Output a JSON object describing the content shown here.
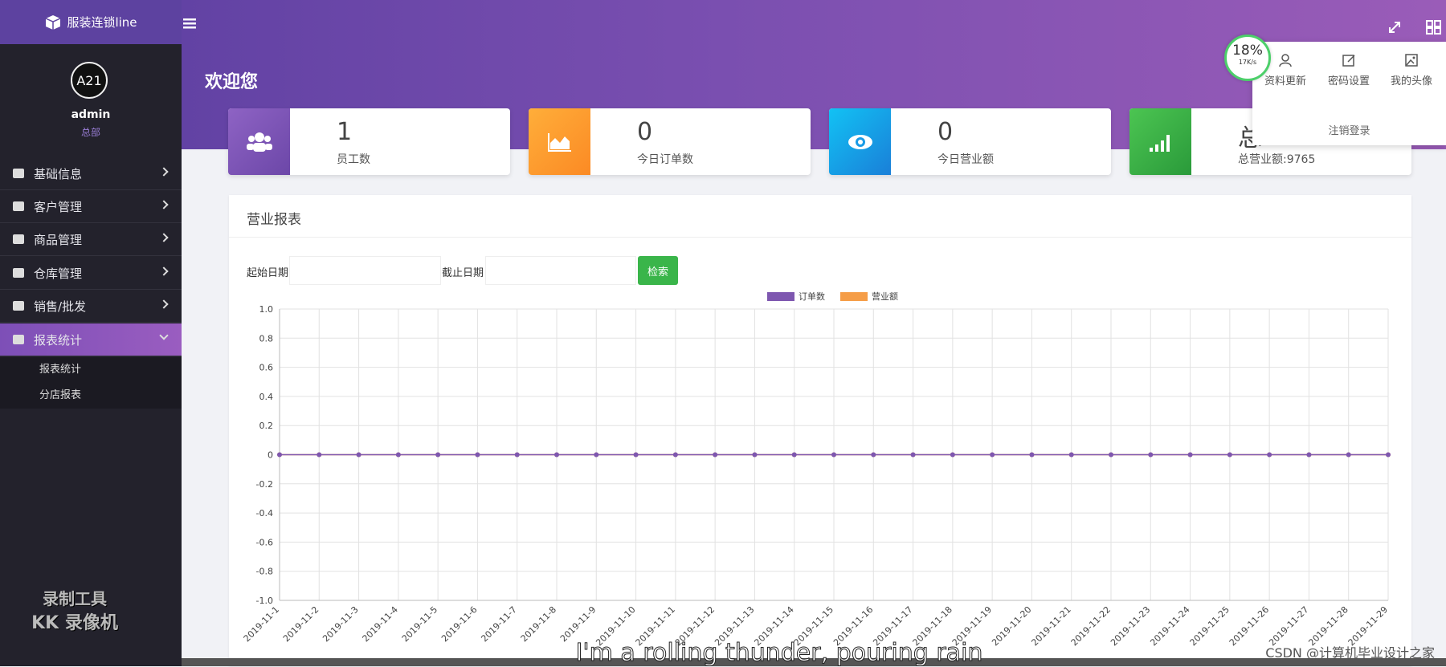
{
  "brand": "服装连锁line",
  "user": {
    "name": "admin",
    "role": "总部",
    "avatar_text": "A21"
  },
  "menu": [
    {
      "label": "基础信息"
    },
    {
      "label": "客户管理"
    },
    {
      "label": "商品管理"
    },
    {
      "label": "仓库管理"
    },
    {
      "label": "销售/批发"
    },
    {
      "label": "报表统计",
      "children": [
        "报表统计",
        "分店报表"
      ]
    }
  ],
  "header": {
    "welcome": "欢迎您"
  },
  "stats": [
    {
      "value": 1,
      "label": "员工数"
    },
    {
      "value": 0,
      "label": "今日订单数"
    },
    {
      "value": 0,
      "label": "今日营业额"
    },
    {
      "value": "总",
      "label": "总营业额:9765"
    }
  ],
  "speed": {
    "percent": "18%",
    "rate": "17K/s"
  },
  "dropdown": {
    "items": [
      "资料更新",
      "密码设置",
      "我的头像"
    ],
    "logout": "注销登录"
  },
  "report": {
    "title": "营业报表",
    "start_label": "起始日期",
    "end_label": "截止日期",
    "button": "检索",
    "chart_data": {
      "type": "line",
      "categories": [
        "2019-11-1",
        "2019-11-2",
        "2019-11-3",
        "2019-11-4",
        "2019-11-5",
        "2019-11-6",
        "2019-11-7",
        "2019-11-8",
        "2019-11-9",
        "2019-11-10",
        "2019-11-11",
        "2019-11-12",
        "2019-11-13",
        "2019-11-14",
        "2019-11-15",
        "2019-11-16",
        "2019-11-17",
        "2019-11-18",
        "2019-11-19",
        "2019-11-20",
        "2019-11-21",
        "2019-11-22",
        "2019-11-23",
        "2019-11-24",
        "2019-11-25",
        "2019-11-26",
        "2019-11-27",
        "2019-11-28",
        "2019-11-29"
      ],
      "series": [
        {
          "name": "订单数",
          "color": "#7e57b0",
          "values": [
            0,
            0,
            0,
            0,
            0,
            0,
            0,
            0,
            0,
            0,
            0,
            0,
            0,
            0,
            0,
            0,
            0,
            0,
            0,
            0,
            0,
            0,
            0,
            0,
            0,
            0,
            0,
            0,
            0
          ]
        },
        {
          "name": "营业额",
          "color": "#f59d47",
          "values": [
            0,
            0,
            0,
            0,
            0,
            0,
            0,
            0,
            0,
            0,
            0,
            0,
            0,
            0,
            0,
            0,
            0,
            0,
            0,
            0,
            0,
            0,
            0,
            0,
            0,
            0,
            0,
            0,
            0
          ]
        }
      ],
      "ylim": [
        -1,
        1
      ],
      "yticks": [
        {
          "value": -1,
          "label": "-1.0"
        },
        -0.8,
        -0.6,
        -0.4,
        -0.2,
        0,
        0.2,
        0.4,
        0.6,
        0.8,
        {
          "value": 1,
          "label": "1.0"
        }
      ],
      "grid": true,
      "legend": "top"
    }
  },
  "overlay": {
    "watermark": [
      "录制工具",
      "KK 录像机"
    ],
    "subtitle": "I'm a rolling thunder, pouring rain",
    "credit": "CSDN @计算机毕业设计之家"
  }
}
